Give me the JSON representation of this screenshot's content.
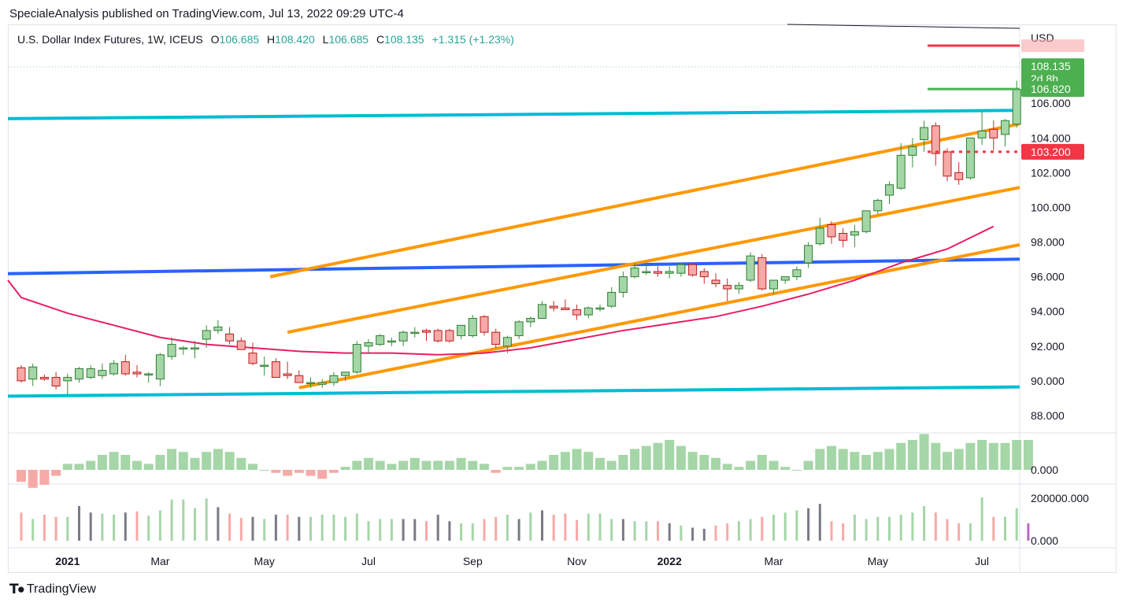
{
  "publisher": "SpecialeAnalysis published on TradingView.com, Jul 13, 2022 09:29 UTC-4",
  "legend": {
    "symbol": "U.S. Dollar Index Futures, 1W, ICEUS",
    "o_label": "O",
    "o": "106.685",
    "h_label": "H",
    "h": "108.420",
    "l_label": "L",
    "l": "106.685",
    "c_label": "C",
    "c": "108.135",
    "change": "+1.315 (+1.23%)"
  },
  "currency": "USD",
  "brand": "TradingView",
  "colors": {
    "up": "#a5d6a7",
    "down": "#f7a9a7",
    "up_border": "#26a69a",
    "down_border": "#ef5350",
    "orange": "#ff9800",
    "cyan": "#00bcd4",
    "blue": "#2962ff",
    "ma": "#e91e63",
    "red_label": "#f23645",
    "green_label": "#4caf50"
  },
  "chart_data": {
    "type": "candlestick",
    "title": "U.S. Dollar Index Futures, 1W, ICEUS",
    "ylim": [
      87,
      110.5
    ],
    "y_ticks": [
      "88.000",
      "90.000",
      "92.000",
      "94.000",
      "96.000",
      "98.000",
      "100.000",
      "102.000",
      "104.000",
      "106.000"
    ],
    "x_ticks": [
      {
        "label": "2021",
        "bar": 4,
        "bold": true
      },
      {
        "label": "Mar",
        "bar": 12
      },
      {
        "label": "May",
        "bar": 21
      },
      {
        "label": "Jul",
        "bar": 30
      },
      {
        "label": "Sep",
        "bar": 39
      },
      {
        "label": "Nov",
        "bar": 48
      },
      {
        "label": "2022",
        "bar": 56,
        "bold": true
      },
      {
        "label": "Mar",
        "bar": 65
      },
      {
        "label": "May",
        "bar": 74
      },
      {
        "label": "Jul",
        "bar": 83
      }
    ],
    "candles": [
      [
        90.75,
        90.9,
        89.9,
        90.0
      ],
      [
        90.1,
        91.0,
        89.7,
        90.8
      ],
      [
        90.2,
        90.35,
        90.0,
        90.1
      ],
      [
        90.2,
        90.5,
        89.5,
        89.7
      ],
      [
        90.0,
        90.4,
        89.2,
        90.2
      ],
      [
        90.1,
        90.8,
        89.9,
        90.7
      ],
      [
        90.2,
        90.9,
        90.1,
        90.7
      ],
      [
        90.3,
        91.0,
        90.1,
        90.6
      ],
      [
        90.4,
        91.2,
        90.3,
        91.0
      ],
      [
        91.1,
        91.5,
        90.3,
        90.4
      ],
      [
        90.5,
        90.9,
        90.2,
        90.4
      ],
      [
        90.4,
        90.5,
        89.9,
        90.4
      ],
      [
        90.1,
        91.6,
        89.7,
        91.5
      ],
      [
        91.4,
        92.5,
        91.2,
        92.1
      ],
      [
        91.9,
        92.0,
        91.5,
        91.9
      ],
      [
        91.9,
        92.3,
        91.3,
        91.9
      ],
      [
        92.4,
        93.2,
        91.9,
        92.9
      ],
      [
        92.9,
        93.5,
        92.7,
        93.1
      ],
      [
        92.7,
        93.1,
        92.1,
        92.3
      ],
      [
        92.3,
        92.5,
        91.8,
        91.8
      ],
      [
        91.6,
        92.2,
        90.9,
        91.0
      ],
      [
        90.9,
        91.4,
        90.3,
        90.9
      ],
      [
        91.1,
        91.3,
        90.2,
        90.2
      ],
      [
        90.4,
        91.1,
        90.1,
        90.3
      ],
      [
        90.3,
        90.6,
        89.9,
        89.9
      ],
      [
        89.9,
        90.2,
        89.6,
        89.9
      ],
      [
        89.8,
        90.1,
        89.6,
        89.9
      ],
      [
        89.9,
        90.5,
        89.7,
        90.3
      ],
      [
        90.3,
        90.5,
        90.0,
        90.5
      ],
      [
        90.5,
        92.3,
        90.4,
        92.1
      ],
      [
        92.0,
        92.4,
        91.6,
        92.2
      ],
      [
        92.1,
        92.7,
        92.0,
        92.6
      ],
      [
        92.3,
        92.5,
        92.0,
        92.3
      ],
      [
        92.3,
        92.9,
        92.0,
        92.8
      ],
      [
        92.8,
        93.1,
        92.5,
        92.8
      ],
      [
        92.9,
        93.0,
        92.3,
        92.8
      ],
      [
        92.9,
        93.0,
        92.2,
        92.3
      ],
      [
        92.9,
        93.0,
        92.2,
        92.3
      ],
      [
        92.6,
        93.2,
        92.4,
        93.2
      ],
      [
        92.6,
        93.8,
        92.5,
        93.6
      ],
      [
        93.7,
        93.8,
        92.6,
        92.8
      ],
      [
        92.8,
        93.0,
        91.9,
        92.1
      ],
      [
        92.0,
        92.6,
        91.6,
        92.5
      ],
      [
        92.6,
        93.5,
        92.4,
        93.4
      ],
      [
        93.4,
        93.7,
        93.1,
        93.6
      ],
      [
        93.6,
        94.6,
        93.6,
        94.4
      ],
      [
        94.3,
        94.6,
        94.0,
        94.2
      ],
      [
        94.2,
        94.7,
        94.1,
        94.1
      ],
      [
        94.1,
        94.4,
        93.5,
        93.8
      ],
      [
        93.8,
        94.3,
        93.6,
        94.2
      ],
      [
        94.2,
        94.4,
        94.0,
        94.2
      ],
      [
        94.3,
        95.4,
        94.2,
        95.1
      ],
      [
        95.1,
        96.3,
        94.8,
        96.0
      ],
      [
        96.0,
        96.8,
        95.9,
        96.5
      ],
      [
        96.3,
        96.8,
        96.1,
        96.3
      ],
      [
        96.3,
        96.6,
        96.0,
        96.2
      ],
      [
        96.2,
        96.6,
        95.9,
        96.3
      ],
      [
        96.2,
        96.8,
        96.0,
        96.7
      ],
      [
        96.7,
        96.8,
        96.0,
        96.1
      ],
      [
        96.3,
        96.5,
        95.6,
        96.0
      ],
      [
        95.8,
        96.2,
        95.4,
        95.6
      ],
      [
        95.5,
        95.9,
        94.6,
        95.3
      ],
      [
        95.3,
        95.7,
        95.0,
        95.5
      ],
      [
        95.8,
        97.4,
        95.7,
        97.2
      ],
      [
        97.1,
        97.3,
        95.2,
        95.3
      ],
      [
        95.3,
        95.8,
        95.0,
        95.8
      ],
      [
        95.8,
        96.0,
        95.6,
        96.0
      ],
      [
        96.0,
        96.6,
        95.8,
        96.4
      ],
      [
        96.8,
        98.0,
        96.5,
        97.8
      ],
      [
        97.9,
        99.4,
        97.8,
        98.8
      ],
      [
        99.0,
        99.2,
        97.9,
        98.3
      ],
      [
        98.5,
        98.8,
        97.7,
        98.1
      ],
      [
        98.4,
        99.0,
        97.7,
        98.6
      ],
      [
        98.6,
        99.8,
        98.5,
        99.8
      ],
      [
        99.8,
        100.5,
        99.6,
        100.4
      ],
      [
        100.7,
        101.5,
        100.2,
        101.3
      ],
      [
        101.1,
        103.7,
        101.0,
        103.0
      ],
      [
        103.0,
        104.0,
        102.3,
        103.5
      ],
      [
        103.9,
        105.0,
        103.2,
        104.6
      ],
      [
        104.7,
        104.9,
        102.4,
        103.1
      ],
      [
        103.2,
        103.4,
        101.5,
        101.8
      ],
      [
        102.0,
        102.6,
        101.3,
        101.6
      ],
      [
        101.7,
        104.0,
        101.6,
        104.0
      ],
      [
        104.0,
        105.5,
        103.6,
        104.4
      ],
      [
        104.5,
        105.0,
        103.3,
        104.0
      ],
      [
        104.2,
        105.1,
        103.5,
        105.0
      ],
      [
        104.8,
        107.3,
        104.6,
        106.8
      ],
      [
        106.7,
        108.4,
        106.7,
        108.1
      ]
    ],
    "hist_values": [
      -0.4,
      -0.6,
      -0.5,
      -0.2,
      0.2,
      0.2,
      0.3,
      0.5,
      0.6,
      0.5,
      0.3,
      0.2,
      0.5,
      0.7,
      0.6,
      0.4,
      0.6,
      0.7,
      0.6,
      0.4,
      0.2,
      0.0,
      -0.1,
      -0.2,
      -0.1,
      -0.2,
      -0.3,
      -0.1,
      0.1,
      0.3,
      0.4,
      0.3,
      0.2,
      0.3,
      0.4,
      0.3,
      0.3,
      0.3,
      0.4,
      0.3,
      0.2,
      -0.1,
      0.1,
      0.1,
      0.2,
      0.3,
      0.5,
      0.6,
      0.7,
      0.6,
      0.4,
      0.3,
      0.5,
      0.7,
      0.8,
      0.9,
      1.0,
      0.8,
      0.6,
      0.5,
      0.4,
      0.2,
      0.1,
      0.3,
      0.5,
      0.3,
      0.1,
      0.0,
      0.3,
      0.7,
      0.8,
      0.7,
      0.6,
      0.5,
      0.6,
      0.7,
      0.9,
      1.0,
      1.2,
      0.9,
      0.6,
      0.7,
      0.9,
      1.0,
      0.9,
      0.9,
      1.0,
      1.0
    ],
    "volume_values": [
      130000,
      100000,
      120000,
      110000,
      110000,
      160000,
      130000,
      125000,
      120000,
      130000,
      135000,
      115000,
      140000,
      190000,
      190000,
      150000,
      195000,
      155000,
      125000,
      105000,
      110000,
      100000,
      120000,
      120000,
      110000,
      110000,
      120000,
      120000,
      110000,
      125000,
      90000,
      100000,
      100000,
      100000,
      100000,
      90000,
      120000,
      90000,
      80000,
      80000,
      100000,
      110000,
      120000,
      100000,
      130000,
      140000,
      120000,
      125000,
      95000,
      125000,
      125000,
      100000,
      100000,
      90000,
      90000,
      90000,
      80000,
      70000,
      60000,
      55000,
      70000,
      80000,
      90000,
      100000,
      110000,
      120000,
      130000,
      140000,
      150000,
      170000,
      90000,
      80000,
      120000,
      100000,
      110000,
      110000,
      120000,
      130000,
      160000,
      130000,
      100000,
      80000,
      80000,
      200000,
      110000,
      110000,
      150000,
      80000
    ],
    "lines": [
      {
        "name": "resistance-cyan",
        "x": [
          -4,
          88
        ],
        "y": [
          105.1,
          105.6
        ]
      },
      {
        "name": "support-cyan",
        "x": [
          -4,
          95
        ],
        "y": [
          89.1,
          89.7
        ]
      },
      {
        "name": "horizontal-blue",
        "x": [
          -4,
          95
        ],
        "y": [
          96.15,
          97.1
        ]
      },
      {
        "name": "channel-upper",
        "x": [
          21.5,
          95
        ],
        "y": [
          96.0,
          106.0
        ]
      },
      {
        "name": "channel-mid",
        "x": [
          23,
          95
        ],
        "y": [
          92.8,
          102.3
        ]
      },
      {
        "name": "channel-lower",
        "x": [
          24,
          95
        ],
        "y": [
          89.6,
          99.0
        ]
      }
    ],
    "ma_points": [
      [
        -4,
        95.8
      ],
      [
        0,
        94.8
      ],
      [
        4,
        93.9
      ],
      [
        8,
        93.2
      ],
      [
        12,
        92.5
      ],
      [
        16,
        92.1
      ],
      [
        20,
        91.9
      ],
      [
        24,
        91.7
      ],
      [
        28,
        91.6
      ],
      [
        32,
        91.6
      ],
      [
        36,
        91.5
      ],
      [
        40,
        91.6
      ],
      [
        44,
        91.9
      ],
      [
        48,
        92.4
      ],
      [
        52,
        92.9
      ],
      [
        56,
        93.3
      ],
      [
        60,
        93.7
      ],
      [
        64,
        94.3
      ],
      [
        68,
        95.0
      ],
      [
        72,
        95.8
      ],
      [
        76,
        96.8
      ],
      [
        80,
        97.6
      ],
      [
        84,
        98.9
      ]
    ],
    "price_labels": [
      {
        "text": "108.135",
        "sub": "2d 8h",
        "value": 108.135,
        "color": "#4caf50"
      },
      {
        "text": "106.820",
        "value": 106.82,
        "color": "#4caf50"
      },
      {
        "text": "103.200",
        "value": 103.2,
        "color": "#f23645"
      }
    ],
    "hist_tick": "0.000",
    "volume_ticks": [
      "200000.000",
      "0.000"
    ]
  }
}
